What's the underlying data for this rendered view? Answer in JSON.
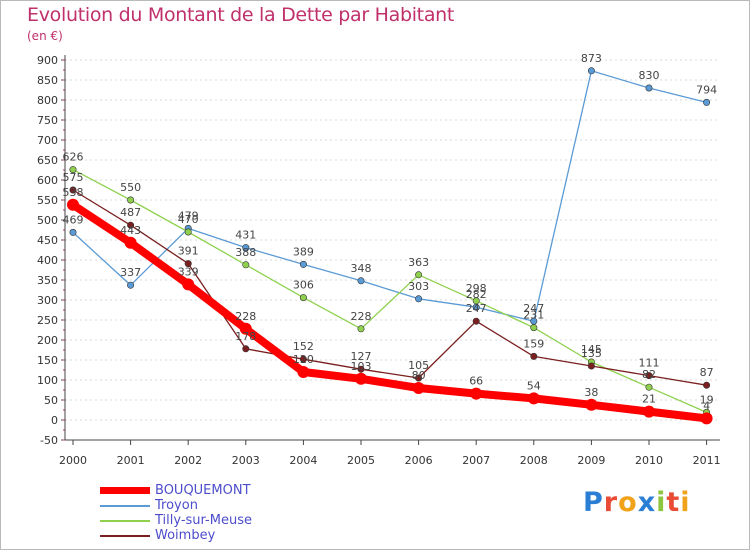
{
  "title": "Evolution du Montant de la Dette par Habitant",
  "unit_label": "(en €)",
  "logo": {
    "text": "Proxiti",
    "letters": [
      {
        "ch": "P",
        "color": "#2a7fd4"
      },
      {
        "ch": "r",
        "color": "#e94b35"
      },
      {
        "ch": "o",
        "color": "#f0a21b"
      },
      {
        "ch": "x",
        "color": "#2a7fd4"
      },
      {
        "ch": "i",
        "color": "#8cc63e"
      },
      {
        "ch": "t",
        "color": "#e94b35"
      },
      {
        "ch": "i",
        "color": "#f0a21b"
      }
    ]
  },
  "chart_data": {
    "type": "line",
    "title": "Evolution du Montant de la Dette par Habitant",
    "ylabel": "(en €)",
    "xlabel": "",
    "ylim": [
      -50,
      900
    ],
    "y_ticks": [
      -50,
      0,
      50,
      100,
      150,
      200,
      250,
      300,
      350,
      400,
      450,
      500,
      550,
      600,
      650,
      700,
      750,
      800,
      850,
      900
    ],
    "categories": [
      "2000",
      "2001",
      "2002",
      "2003",
      "2004",
      "2005",
      "2006",
      "2007",
      "2008",
      "2009",
      "2010",
      "2011"
    ],
    "grid": "horizontal",
    "legend_position": "bottom-left",
    "series": [
      {
        "name": "BOUQUEMONT",
        "color": "#ff0000",
        "emphasis": true,
        "values": [
          538,
          443,
          339,
          228,
          120,
          103,
          80,
          66,
          54,
          38,
          21,
          4
        ]
      },
      {
        "name": "Troyon",
        "color": "#5b9bd5",
        "emphasis": false,
        "values": [
          469,
          337,
          479,
          431,
          389,
          348,
          303,
          282,
          247,
          873,
          830,
          794
        ]
      },
      {
        "name": "Tilly-sur-Meuse",
        "color": "#8fd14f",
        "emphasis": false,
        "values": [
          626,
          550,
          470,
          388,
          306,
          228,
          363,
          298,
          231,
          145,
          82,
          19
        ]
      },
      {
        "name": "Woimbey",
        "color": "#7a1f1f",
        "emphasis": false,
        "values": [
          575,
          487,
          391,
          178,
          152,
          127,
          105,
          247,
          159,
          135,
          111,
          87
        ]
      }
    ]
  }
}
